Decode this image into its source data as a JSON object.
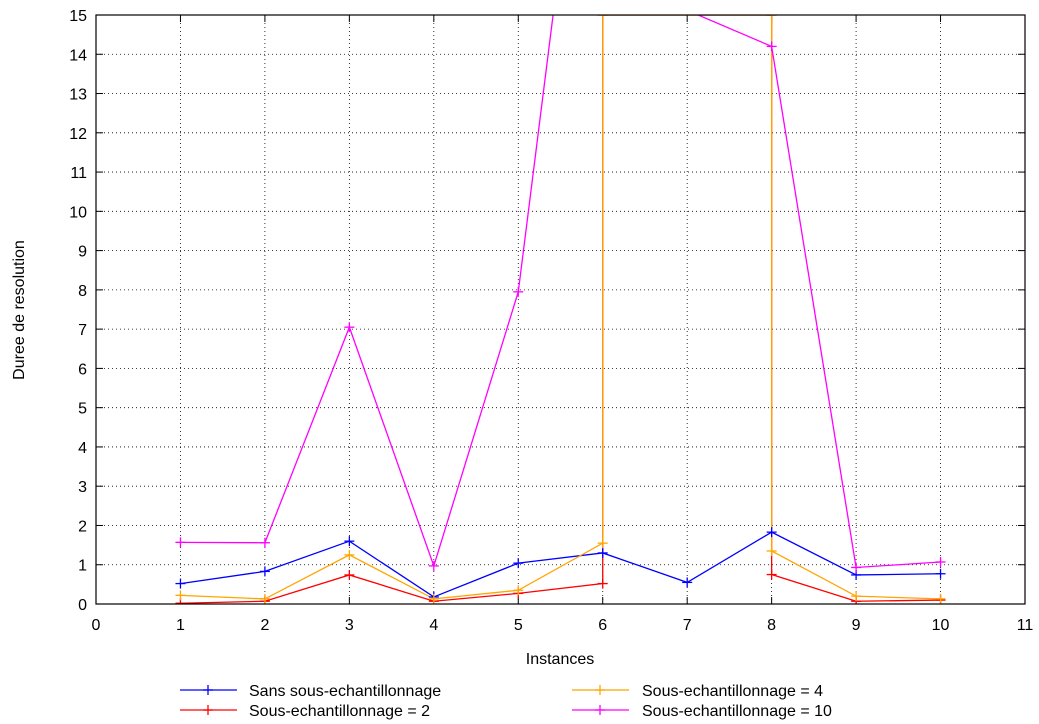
{
  "chart_data": {
    "type": "line",
    "title": "",
    "xlabel": "Instances",
    "ylabel": "Duree de resolution",
    "xlim": [
      0,
      11
    ],
    "ylim": [
      0,
      15
    ],
    "xticks": [
      0,
      1,
      2,
      3,
      4,
      5,
      6,
      7,
      8,
      9,
      10,
      11
    ],
    "yticks": [
      0,
      1,
      2,
      3,
      4,
      5,
      6,
      7,
      8,
      9,
      10,
      11,
      12,
      13,
      14,
      15
    ],
    "grid": true,
    "legend_position": "bottom",
    "series": [
      {
        "name": "Sans sous-echantillonnage",
        "color": "#0000ff",
        "x": [
          1,
          2,
          3,
          4,
          5,
          6,
          7,
          8,
          9,
          10
        ],
        "y": [
          0.52,
          0.83,
          1.6,
          0.18,
          1.04,
          1.3,
          0.55,
          1.83,
          0.74,
          0.77
        ]
      },
      {
        "name": "Sous-echantillonnage = 2",
        "color": "#ff0000",
        "x": [
          1,
          2,
          3,
          4,
          5,
          6,
          6,
          8,
          8,
          9,
          10
        ],
        "y": [
          0.02,
          0.07,
          0.74,
          0.07,
          0.27,
          0.52,
          15,
          15,
          0.75,
          0.07,
          0.1
        ]
      },
      {
        "name": "Sous-echantillonnage = 4",
        "color": "#ffa500",
        "x": [
          1,
          2,
          3,
          4,
          5,
          6,
          6,
          8,
          8,
          9,
          10
        ],
        "y": [
          0.22,
          0.13,
          1.25,
          0.13,
          0.35,
          1.55,
          15,
          15,
          1.35,
          0.2,
          0.13
        ]
      },
      {
        "name": "Sous-echantillonnage = 10",
        "color": "#ff00ff",
        "x": [
          1,
          2,
          3,
          4,
          5,
          5.5,
          8,
          9,
          10
        ],
        "y": [
          1.57,
          1.56,
          7.05,
          0.97,
          7.95,
          16.5,
          14.2,
          0.93,
          1.07
        ]
      }
    ]
  }
}
